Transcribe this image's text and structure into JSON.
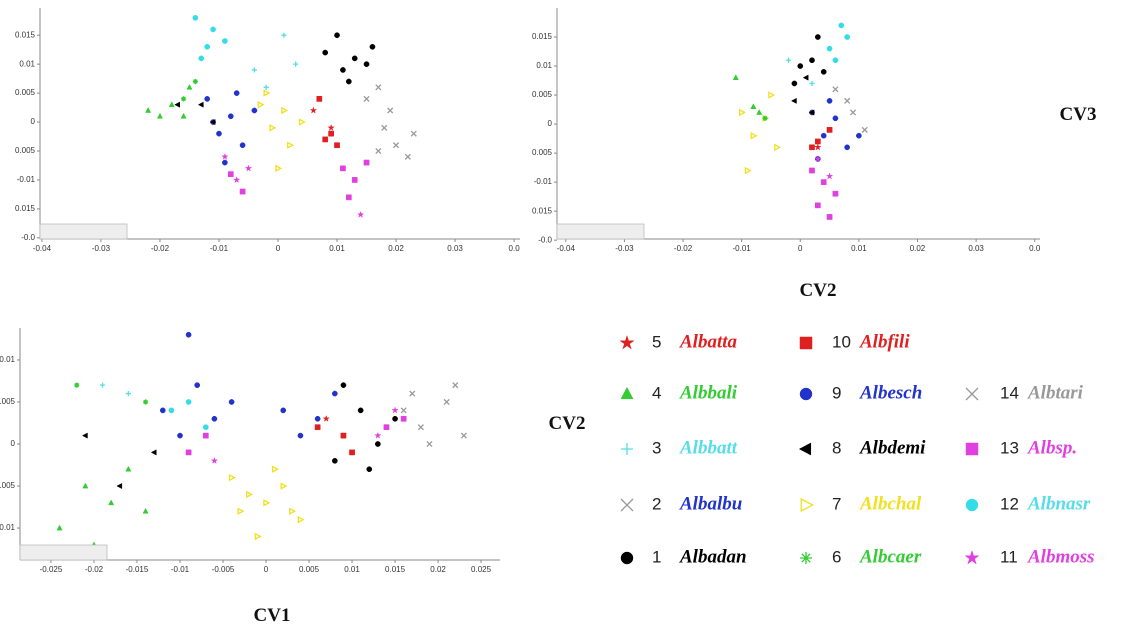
{
  "chart_data": [
    {
      "type": "scatter",
      "xlim": [
        -0.041,
        0.041
      ],
      "ylim": [
        -0.0202,
        0.0197
      ],
      "xticks": [
        -0.04,
        -0.03,
        -0.02,
        -0.01,
        0,
        0.01,
        0.02,
        0.03,
        {
          "value": 0.04,
          "label": "0.0"
        }
      ],
      "yticks": [
        0.015,
        0.01,
        0.005,
        0,
        {
          "value": -0.005,
          "label": "0.005"
        },
        -0.01,
        {
          "value": -0.015,
          "label": "0.015"
        },
        {
          "value": -0.02,
          "label": "-0.0"
        }
      ],
      "series": [
        {
          "name": "Albadan",
          "x": [
            0.008,
            0.011,
            0.013,
            0.015,
            0.012,
            0.01,
            0.016
          ],
          "y": [
            0.012,
            0.009,
            0.011,
            0.01,
            0.007,
            0.015,
            0.013
          ]
        },
        {
          "name": "Albesch",
          "x": [
            -0.012,
            -0.01,
            -0.008,
            -0.006,
            -0.004,
            -0.009,
            -0.007,
            -0.011
          ],
          "y": [
            0.004,
            -0.002,
            0.001,
            -0.004,
            0.002,
            -0.007,
            0.005,
            0.0
          ]
        },
        {
          "name": "Albalbu",
          "x": [
            0.015,
            0.017,
            0.019
          ],
          "y": [
            0.004,
            0.006,
            0.002
          ]
        },
        {
          "name": "Albtari",
          "x": [
            0.018,
            0.02,
            0.023,
            0.022,
            0.017
          ],
          "y": [
            -0.001,
            -0.004,
            -0.002,
            -0.006,
            -0.005
          ]
        },
        {
          "name": "Albchal",
          "x": [
            -0.003,
            -0.001,
            0.001,
            0.002,
            0.0,
            -0.002,
            0.004
          ],
          "y": [
            0.003,
            -0.001,
            0.002,
            -0.004,
            -0.008,
            0.005,
            0.0
          ]
        },
        {
          "name": "Albnasr",
          "x": [
            -0.014,
            -0.012,
            -0.011,
            -0.013,
            -0.009
          ],
          "y": [
            0.018,
            0.013,
            0.016,
            0.011,
            0.014
          ]
        },
        {
          "name": "Albbali",
          "x": [
            -0.022,
            -0.018,
            -0.016,
            -0.015,
            -0.02
          ],
          "y": [
            0.002,
            0.003,
            0.001,
            0.006,
            0.001
          ]
        },
        {
          "name": "Albsp.",
          "x": [
            0.011,
            0.013,
            0.015,
            0.012,
            -0.008,
            -0.006
          ],
          "y": [
            -0.008,
            -0.01,
            -0.007,
            -0.013,
            -0.009,
            -0.012
          ]
        },
        {
          "name": "Albmoss",
          "x": [
            -0.009,
            -0.007,
            -0.005,
            0.014
          ],
          "y": [
            -0.006,
            -0.01,
            -0.008,
            -0.016
          ]
        },
        {
          "name": "Albfili",
          "x": [
            0.008,
            0.009,
            0.01,
            0.007
          ],
          "y": [
            -0.003,
            -0.002,
            -0.004,
            0.004
          ]
        },
        {
          "name": "Albatta",
          "x": [
            0.006,
            0.009
          ],
          "y": [
            0.002,
            -0.001
          ]
        },
        {
          "name": "Albdemi",
          "x": [
            -0.013,
            -0.017,
            -0.011
          ],
          "y": [
            0.003,
            0.003,
            0.0
          ]
        },
        {
          "name": "Albbatt",
          "x": [
            0.001,
            -0.004,
            -0.002,
            0.003
          ],
          "y": [
            0.015,
            0.009,
            0.006,
            0.01
          ]
        },
        {
          "name": "Albcaer",
          "x": [
            -0.014,
            -0.016
          ],
          "y": [
            0.007,
            0.004
          ]
        }
      ]
    },
    {
      "type": "scatter",
      "xlabel": "CV2",
      "ylabel": "CV3",
      "xlim": [
        -0.0415,
        0.0409
      ],
      "ylim": [
        -0.0198,
        0.02
      ],
      "xticks": [
        -0.04,
        -0.03,
        -0.02,
        -0.01,
        0,
        0.01,
        0.02,
        0.03,
        {
          "value": 0.04,
          "label": "0.0"
        }
      ],
      "yticks": [
        0.015,
        0.01,
        0.005,
        0,
        {
          "value": -0.005,
          "label": "0.005"
        },
        -0.01,
        {
          "value": -0.015,
          "label": "0.015"
        },
        {
          "value": -0.02,
          "label": "-0.0"
        }
      ],
      "series": [
        {
          "name": "Albadan",
          "x": [
            0.0,
            0.002,
            0.004,
            0.003,
            -0.001
          ],
          "y": [
            0.01,
            0.011,
            0.009,
            0.015,
            0.007
          ]
        },
        {
          "name": "Albesch",
          "x": [
            0.002,
            0.004,
            0.006,
            0.008,
            0.003,
            0.01,
            0.005
          ],
          "y": [
            0.002,
            -0.002,
            0.001,
            -0.004,
            -0.006,
            -0.002,
            0.004
          ]
        },
        {
          "name": "Albalbu",
          "x": [
            0.006,
            0.008
          ],
          "y": [
            0.006,
            0.004
          ]
        },
        {
          "name": "Albtari",
          "x": [
            0.009,
            0.011
          ],
          "y": [
            0.002,
            -0.001
          ]
        },
        {
          "name": "Albchal",
          "x": [
            -0.01,
            -0.008,
            -0.006,
            -0.004,
            -0.009,
            -0.005
          ],
          "y": [
            0.002,
            -0.002,
            0.001,
            -0.004,
            -0.008,
            0.005
          ]
        },
        {
          "name": "Albnasr",
          "x": [
            0.005,
            0.007,
            0.008,
            0.006
          ],
          "y": [
            0.013,
            0.017,
            0.015,
            0.011
          ]
        },
        {
          "name": "Albbali",
          "x": [
            -0.008,
            -0.007,
            -0.011
          ],
          "y": [
            0.003,
            0.002,
            0.008
          ]
        },
        {
          "name": "Albsp.",
          "x": [
            0.002,
            0.004,
            0.006,
            0.003,
            0.005
          ],
          "y": [
            -0.008,
            -0.01,
            -0.012,
            -0.014,
            -0.016
          ]
        },
        {
          "name": "Albmoss",
          "x": [
            0.003,
            0.005
          ],
          "y": [
            -0.006,
            -0.009
          ]
        },
        {
          "name": "Albfili",
          "x": [
            0.002,
            0.003,
            0.005
          ],
          "y": [
            -0.004,
            -0.003,
            -0.001
          ]
        },
        {
          "name": "Albatta",
          "x": [
            0.003
          ],
          "y": [
            -0.004
          ]
        },
        {
          "name": "Albdemi",
          "x": [
            -0.001,
            0.001,
            0.002
          ],
          "y": [
            0.004,
            0.008,
            0.002
          ]
        },
        {
          "name": "Albbatt",
          "x": [
            0.002,
            -0.002
          ],
          "y": [
            0.007,
            0.011
          ]
        },
        {
          "name": "Albcaer",
          "x": [
            -0.006
          ],
          "y": [
            0.001
          ]
        }
      ]
    },
    {
      "type": "scatter",
      "xlabel": "CV1",
      "ylabel": "CV2",
      "xlim": [
        -0.0286,
        0.0272
      ],
      "ylim": [
        -0.0138,
        0.0138
      ],
      "xticks": [
        -0.025,
        -0.02,
        -0.015,
        -0.01,
        -0.005,
        0,
        0.005,
        0.01,
        0.015,
        0.02,
        0.025
      ],
      "yticks": [
        0.01,
        0.005,
        0,
        {
          "value": -0.005,
          "label": "0.005"
        },
        -0.01
      ],
      "series": [
        {
          "name": "Albadan",
          "x": [
            0.009,
            0.011,
            0.013,
            0.008,
            0.015,
            0.012
          ],
          "y": [
            0.007,
            0.004,
            0.0,
            -0.002,
            0.003,
            -0.003
          ]
        },
        {
          "name": "Albesch",
          "x": [
            -0.012,
            -0.01,
            -0.008,
            -0.006,
            -0.004,
            0.002,
            0.004,
            0.006,
            -0.009,
            0.008
          ],
          "y": [
            0.004,
            0.001,
            0.007,
            0.003,
            0.005,
            0.004,
            0.001,
            0.003,
            0.013,
            0.006
          ]
        },
        {
          "name": "Albalbu",
          "x": [
            0.016,
            0.019
          ],
          "y": [
            0.004,
            0.0
          ]
        },
        {
          "name": "Albtari",
          "x": [
            0.018,
            0.021,
            0.023,
            0.017,
            0.022
          ],
          "y": [
            0.002,
            0.005,
            0.001,
            0.006,
            0.007
          ]
        },
        {
          "name": "Albchal",
          "x": [
            -0.004,
            -0.002,
            0.0,
            0.002,
            0.004,
            -0.001,
            0.001,
            0.003,
            -0.003
          ],
          "y": [
            -0.004,
            -0.006,
            -0.007,
            -0.005,
            -0.009,
            -0.011,
            -0.003,
            -0.008,
            -0.008
          ]
        },
        {
          "name": "Albnasr",
          "x": [
            -0.011,
            -0.009,
            -0.007
          ],
          "y": [
            0.004,
            0.005,
            0.002
          ]
        },
        {
          "name": "Albbali",
          "x": [
            -0.024,
            -0.021,
            -0.018,
            -0.016,
            -0.02,
            -0.014
          ],
          "y": [
            -0.01,
            -0.005,
            -0.007,
            -0.003,
            -0.012,
            -0.008
          ]
        },
        {
          "name": "Albsp.",
          "x": [
            0.014,
            0.016,
            -0.007,
            -0.009
          ],
          "y": [
            0.002,
            0.003,
            0.001,
            -0.001
          ]
        },
        {
          "name": "Albmoss",
          "x": [
            0.013,
            0.015,
            -0.006
          ],
          "y": [
            0.001,
            0.004,
            -0.002
          ]
        },
        {
          "name": "Albfili",
          "x": [
            0.009,
            0.006,
            0.01
          ],
          "y": [
            0.001,
            0.002,
            -0.001
          ]
        },
        {
          "name": "Albatta",
          "x": [
            0.007
          ],
          "y": [
            0.003
          ]
        },
        {
          "name": "Albdemi",
          "x": [
            -0.017,
            -0.021,
            -0.013
          ],
          "y": [
            -0.005,
            0.001,
            -0.001
          ]
        },
        {
          "name": "Albbatt",
          "x": [
            -0.019,
            -0.016
          ],
          "y": [
            0.007,
            0.006
          ]
        },
        {
          "name": "Albcaer",
          "x": [
            -0.022,
            -0.014
          ],
          "y": [
            0.007,
            0.005
          ]
        }
      ]
    }
  ],
  "legend": [
    {
      "number": 5,
      "name": "Albatta",
      "color": "#e02020",
      "text_color": "#e02020",
      "marker": "star"
    },
    {
      "number": 4,
      "name": "Albbali",
      "color": "#33cc33",
      "text_color": "#33cc33",
      "marker": "triangle"
    },
    {
      "number": 3,
      "name": "Albbatt",
      "color": "#55dde8",
      "text_color": "#55dde8",
      "marker": "plus"
    },
    {
      "number": 2,
      "name": "Albalbu",
      "color": "#999999",
      "text_color": "#2233cc",
      "marker": "cross"
    },
    {
      "number": 1,
      "name": "Albadan",
      "color": "#000000",
      "text_color": "#000000",
      "marker": "circle"
    },
    {
      "number": 10,
      "name": "Albfili",
      "color": "#e02020",
      "text_color": "#e02020",
      "marker": "square"
    },
    {
      "number": 9,
      "name": "Albesch",
      "color": "#2233cc",
      "text_color": "#2233cc",
      "marker": "circle"
    },
    {
      "number": 8,
      "name": "Albdemi",
      "color": "#000000",
      "text_color": "#000000",
      "marker": "triangle-left"
    },
    {
      "number": 7,
      "name": "Albchal",
      "color": "#f0e020",
      "text_color": "#f0e020",
      "marker": "triangle-right"
    },
    {
      "number": 6,
      "name": "Albcaer",
      "color": "#33cc33",
      "text_color": "#33cc33",
      "marker": "asterisk"
    },
    {
      "number": 14,
      "name": "Albtari",
      "color": "#999999",
      "text_color": "#999999",
      "marker": "cross"
    },
    {
      "number": 13,
      "name": "Albsp.",
      "color": "#e040e0",
      "text_color": "#e040e0",
      "marker": "square"
    },
    {
      "number": 12,
      "name": "Albnasr",
      "color": "#33dde8",
      "text_color": "#55dde8",
      "marker": "circle"
    },
    {
      "number": 11,
      "name": "Albmoss",
      "color": "#e040e0",
      "text_color": "#e040e0",
      "marker": "star"
    }
  ]
}
